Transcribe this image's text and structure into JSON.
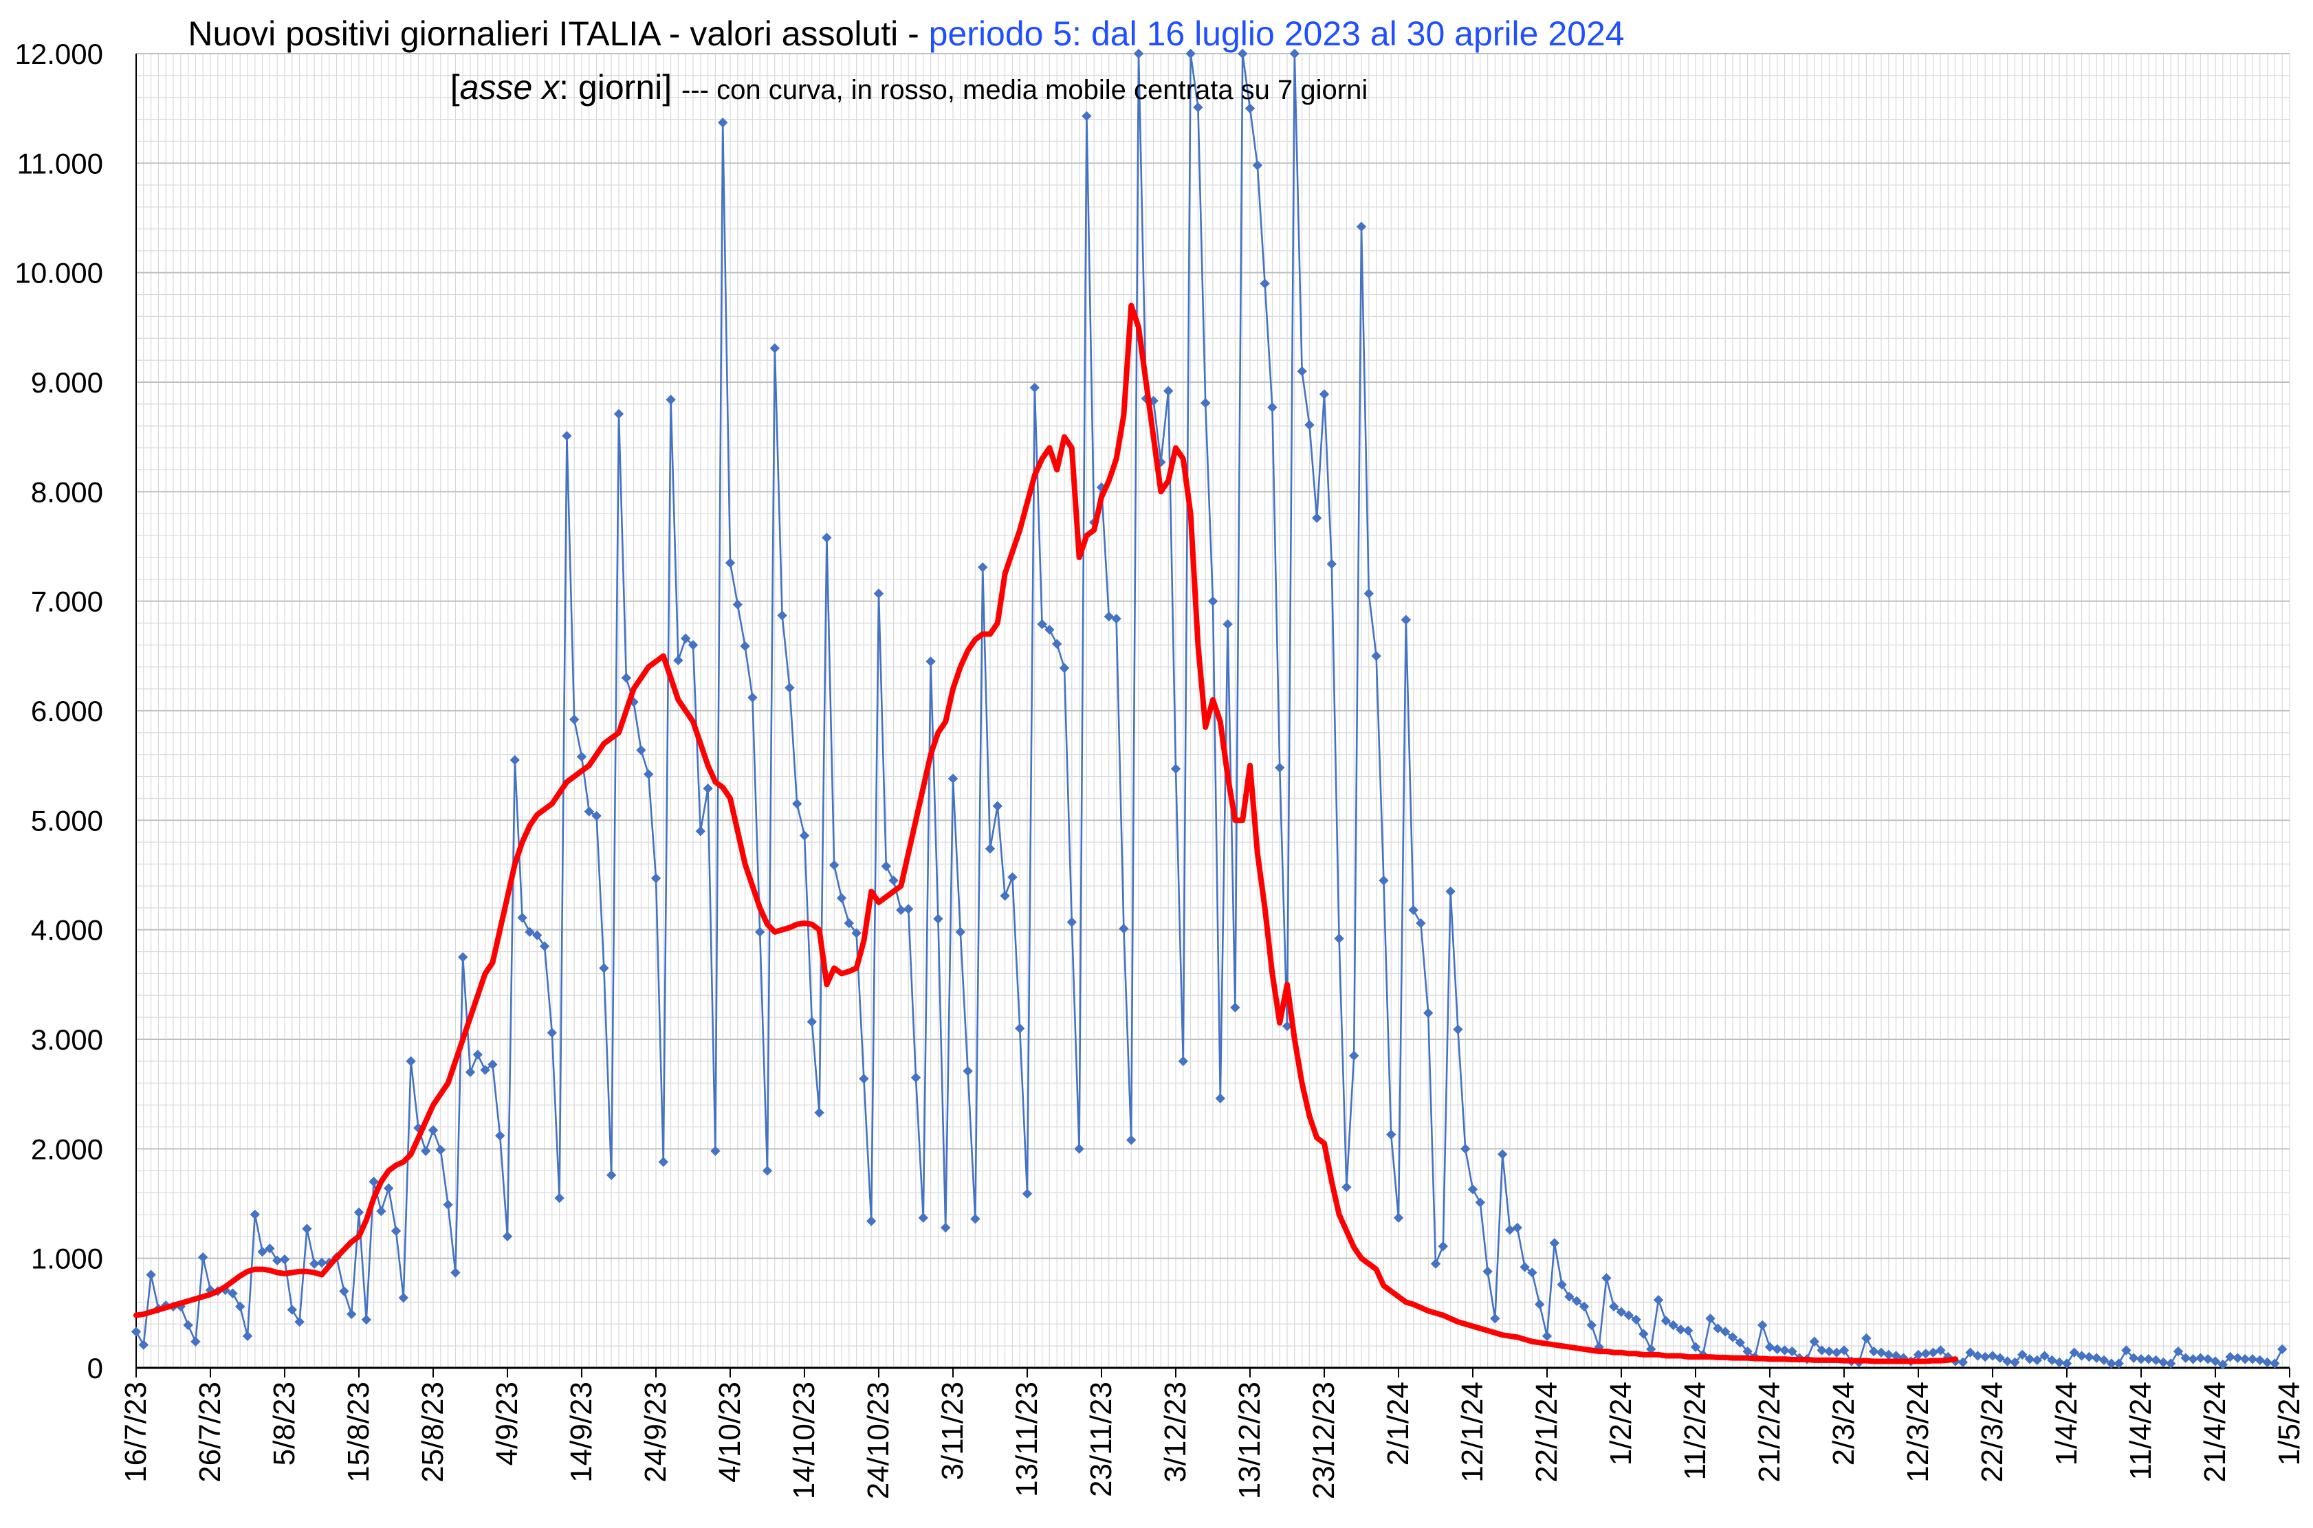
{
  "title": {
    "part1": "Nuovi positivi giornalieri ITALIA - valori assoluti - ",
    "part2": "periodo 5: dal 16 luglio 2023 al 30 aprile 2024",
    "sub_open": "[",
    "sub_italic": "asse x",
    "sub_mid": ": giorni] ",
    "sub_small": "--- con curva, in rosso, media mobile centrata su 7 giorni"
  },
  "colors": {
    "title": "#000000",
    "title_accent": "#1f4fff",
    "series": "#4472c4",
    "moving_average": "#ff0000",
    "grid": "#d9d9d9",
    "axis": "#000000"
  },
  "chart_data": {
    "type": "line",
    "xlabel": "",
    "ylabel": "",
    "ylim": [
      0,
      12000
    ],
    "grid": true,
    "y_ticks": [
      0,
      1000,
      2000,
      3000,
      4000,
      5000,
      6000,
      7000,
      8000,
      9000,
      10000,
      11000,
      12000
    ],
    "y_tick_labels": [
      "0",
      "1.000",
      "2.000",
      "3.000",
      "4.000",
      "5.000",
      "6.000",
      "7.000",
      "8.000",
      "9.000",
      "10.000",
      "11.000",
      "12.000"
    ],
    "x_tick_labels": [
      "16/7/23",
      "26/7/23",
      "5/8/23",
      "15/8/23",
      "25/8/23",
      "4/9/23",
      "14/9/23",
      "24/9/23",
      "4/10/23",
      "14/10/23",
      "24/10/23",
      "3/11/23",
      "13/11/23",
      "23/11/23",
      "3/12/23",
      "13/12/23",
      "23/12/23",
      "2/1/24",
      "12/1/24",
      "22/1/24",
      "1/2/24",
      "11/2/24",
      "21/2/24",
      "2/3/24",
      "12/3/24",
      "22/3/24",
      "1/4/24",
      "11/4/24",
      "21/4/24",
      "1/5/24"
    ],
    "x_start": "16/7/23",
    "x_end": "1/5/24",
    "series": [
      {
        "values": [
          330,
          210,
          850,
          540,
          570,
          560,
          560,
          390,
          240,
          1010,
          710,
          700,
          710,
          680,
          560,
          290,
          1400,
          1060,
          1090,
          980,
          990,
          530,
          420,
          1270,
          950,
          960,
          960,
          1010,
          700,
          490,
          1420,
          440,
          1700,
          1430,
          1640,
          1250,
          640,
          2800,
          2190,
          1980,
          2170,
          1990,
          1490,
          870,
          3750,
          2700,
          2860,
          2720,
          2770,
          2120,
          1200,
          5550,
          4110,
          3980,
          3950,
          3850,
          3060,
          1550,
          8510,
          5920,
          5580,
          5080,
          5040,
          3650,
          1760,
          8710,
          6300,
          6080,
          5640,
          5420,
          4470,
          1880,
          8840,
          6460,
          6660,
          6600,
          4900,
          5290,
          1980,
          11370,
          7350,
          6970,
          6590,
          6120,
          3980,
          1800,
          9310,
          6870,
          6210,
          5150,
          4860,
          3160,
          2330,
          7580,
          4590,
          4290,
          4060,
          3970,
          2640,
          1340,
          7070,
          4580,
          4450,
          4180,
          4190,
          2650,
          1370,
          6450,
          4100,
          1280,
          5380,
          3980,
          2710,
          1360,
          7310,
          4740,
          5130,
          4310,
          4480,
          3100,
          1590,
          8950,
          6790,
          6740,
          6610,
          6390,
          4070,
          2000,
          11430,
          7720,
          8040,
          6860,
          6840,
          4010,
          2080,
          12000,
          8850,
          8830,
          8270,
          8920,
          5470,
          2800,
          12000,
          11510,
          8810,
          7000,
          2460,
          6790,
          3290,
          12000,
          11500,
          10980,
          9900,
          8770,
          5480,
          3120,
          12000,
          9100,
          8610,
          7760,
          8890,
          7340,
          3920,
          1650,
          2850,
          10420,
          7070,
          6500,
          4450,
          2130,
          1370,
          6830,
          4180,
          4060,
          3240,
          950,
          1110,
          4350,
          3090,
          2000,
          1630,
          1510,
          880,
          450,
          1950,
          1260,
          1280,
          920,
          870,
          580,
          290,
          1140,
          760,
          650,
          610,
          560,
          390,
          190,
          820,
          560,
          510,
          480,
          440,
          310,
          170,
          620,
          430,
          390,
          350,
          340,
          190,
          120,
          450,
          360,
          330,
          280,
          230,
          150,
          100,
          390,
          190,
          170,
          160,
          150,
          90,
          80,
          240,
          160,
          150,
          140,
          160,
          60,
          50,
          270,
          150,
          140,
          120,
          110,
          90,
          60,
          120,
          130,
          140,
          160,
          100,
          60,
          50,
          140,
          110,
          100,
          110,
          90,
          60,
          50,
          120,
          80,
          70,
          110,
          70,
          50,
          40,
          140,
          110,
          100,
          90,
          70,
          40,
          40,
          160,
          90,
          80,
          80,
          70,
          50,
          40,
          150,
          90,
          80,
          90,
          80,
          60,
          30,
          100,
          90,
          80,
          80,
          70,
          50,
          40,
          170
        ]
      },
      {
        "values": [
          480,
          490,
          510,
          530,
          550,
          570,
          590,
          610,
          630,
          650,
          670,
          700,
          740,
          790,
          840,
          880,
          900,
          900,
          890,
          870,
          860,
          870,
          880,
          880,
          870,
          850,
          930,
          1010,
          1080,
          1150,
          1200,
          1350,
          1550,
          1700,
          1800,
          1850,
          1880,
          1950,
          2100,
          2250,
          2400,
          2500,
          2600,
          2800,
          3000,
          3200,
          3400,
          3600,
          3700,
          4000,
          4300,
          4600,
          4800,
          4950,
          5050,
          5100,
          5150,
          5250,
          5350,
          5400,
          5450,
          5500,
          5600,
          5700,
          5750,
          5800,
          6000,
          6200,
          6300,
          6400,
          6450,
          6500,
          6300,
          6100,
          6000,
          5900,
          5700,
          5500,
          5350,
          5300,
          5200,
          4900,
          4600,
          4400,
          4200,
          4050,
          3980,
          4000,
          4020,
          4050,
          4060,
          4050,
          4000,
          3500,
          3650,
          3600,
          3620,
          3650,
          3900,
          4350,
          4250,
          4300,
          4350,
          4400,
          4700,
          5000,
          5300,
          5600,
          5800,
          5900,
          6200,
          6400,
          6550,
          6650,
          6700,
          6700,
          6800,
          7250,
          7450,
          7650,
          7900,
          8150,
          8300,
          8400,
          8200,
          8500,
          8400,
          7400,
          7600,
          7650,
          7950,
          8100,
          8300,
          8700,
          9700,
          9500,
          9000,
          8500,
          8000,
          8100,
          8400,
          8300,
          7800,
          6600,
          5850,
          6100,
          5900,
          5400,
          5000,
          5000,
          5500,
          4700,
          4200,
          3600,
          3150,
          3500,
          3000,
          2600,
          2300,
          2100,
          2050,
          1700,
          1400,
          1250,
          1100,
          1000,
          950,
          900,
          750,
          700,
          650,
          600,
          580,
          550,
          520,
          500,
          480,
          450,
          420,
          400,
          380,
          360,
          340,
          320,
          300,
          290,
          280,
          260,
          240,
          230,
          220,
          210,
          200,
          190,
          180,
          170,
          160,
          150,
          150,
          140,
          140,
          130,
          130,
          120,
          120,
          120,
          110,
          110,
          110,
          100,
          100,
          100,
          100,
          95,
          95,
          90,
          90,
          90,
          85,
          85,
          80,
          80,
          80,
          75,
          75,
          75,
          70,
          70,
          70,
          70,
          65,
          65,
          65,
          65,
          60,
          60,
          60,
          60,
          60,
          60,
          60,
          60,
          65,
          65,
          70,
          80
        ]
      }
    ]
  }
}
